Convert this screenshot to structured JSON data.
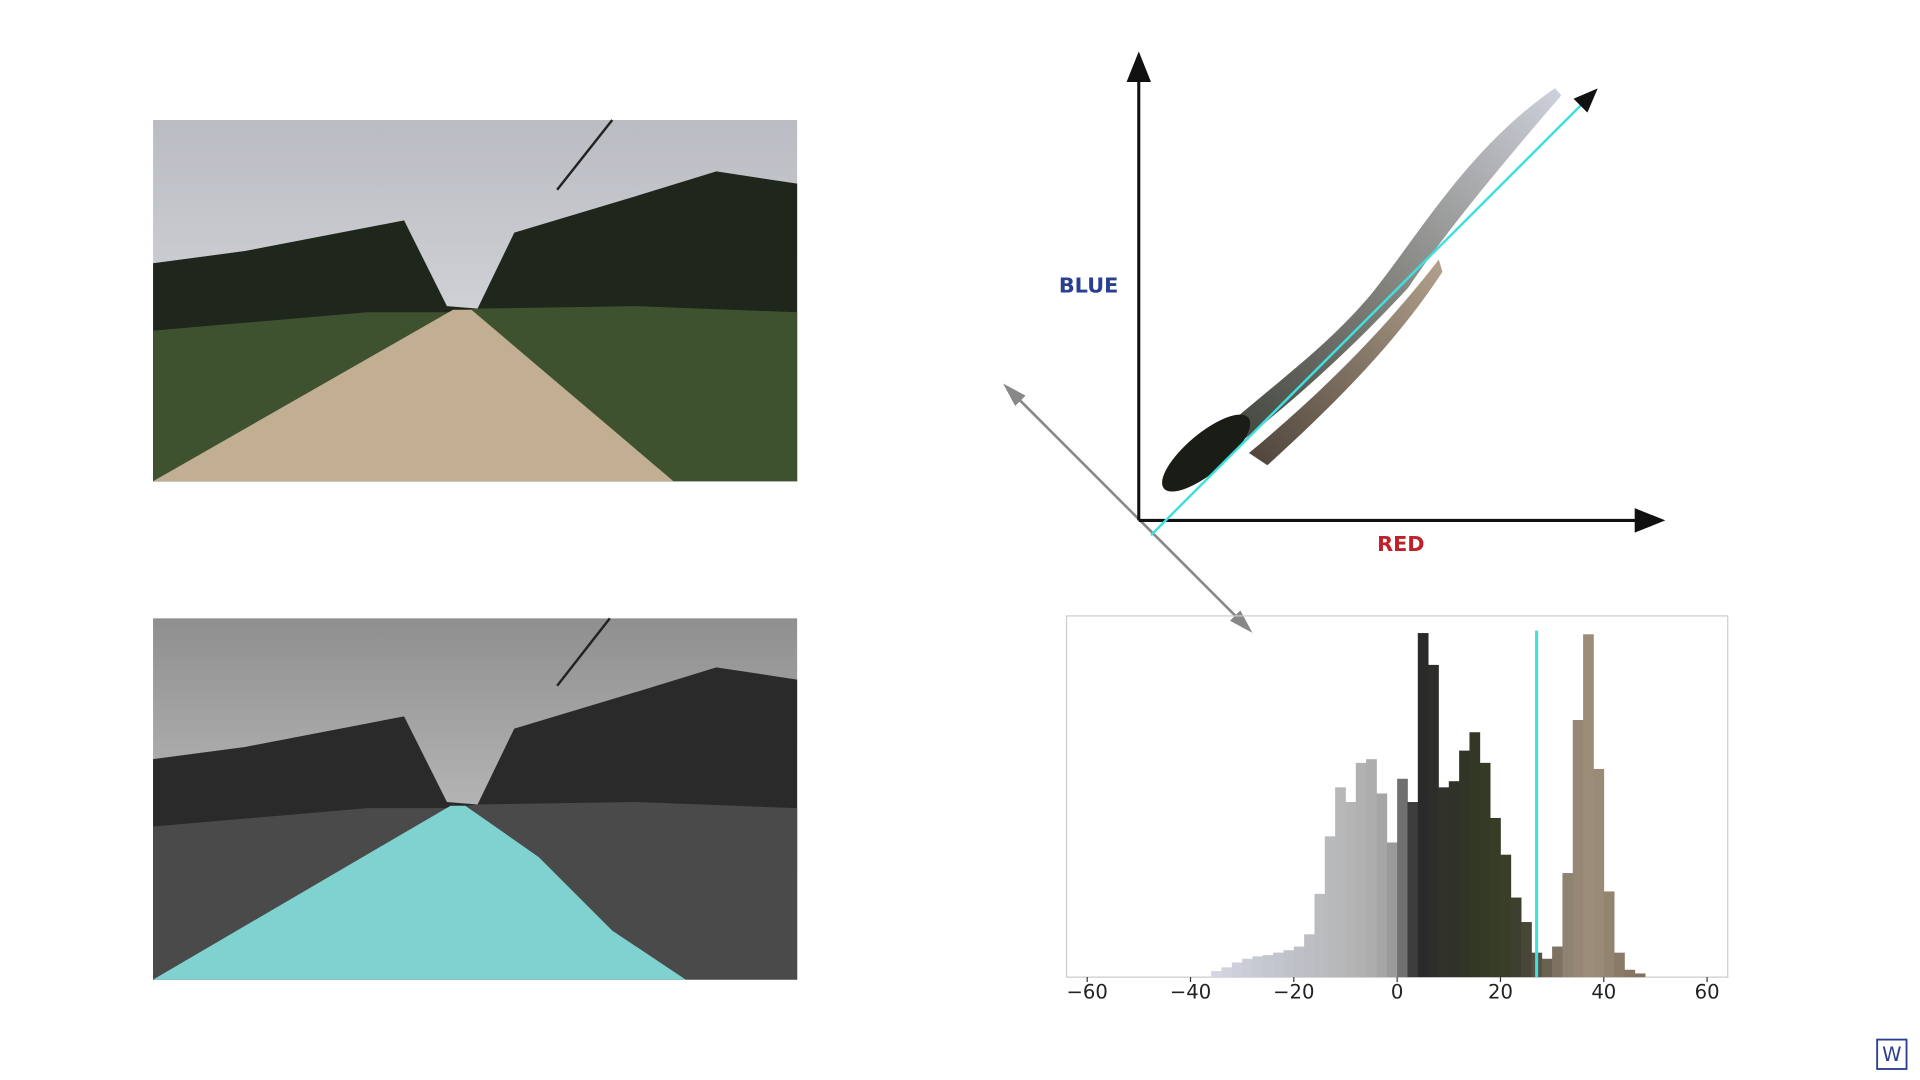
{
  "labels": {
    "blue_axis": "BLUE",
    "red_axis": "RED",
    "logo": "W"
  },
  "chart_data": {
    "type": "histogram",
    "bins": [
      -36,
      -34,
      -32,
      -30,
      -28,
      -26,
      -24,
      -22,
      -20,
      -18,
      -16,
      -14,
      -12,
      -10,
      -8,
      -6,
      -4,
      -2,
      0,
      2,
      4,
      6,
      8,
      10,
      12,
      14,
      16,
      18,
      20,
      22,
      24,
      26,
      28,
      30,
      32,
      34,
      36,
      38,
      40,
      42,
      44,
      46,
      48
    ],
    "counts": [
      5,
      8,
      12,
      15,
      17,
      18,
      20,
      22,
      25,
      35,
      68,
      115,
      155,
      143,
      175,
      178,
      150,
      110,
      162,
      143,
      281,
      255,
      155,
      160,
      185,
      200,
      175,
      130,
      100,
      65,
      45,
      20,
      15,
      25,
      85,
      210,
      280,
      170,
      70,
      20,
      6,
      3
    ],
    "colors": [
      "#d3d6e0",
      "#d0d3dd",
      "#cdd0da",
      "#cacdd6",
      "#c7cad3",
      "#c4c7d0",
      "#c2c5cd",
      "#c0c2ca",
      "#bec0c7",
      "#bcbec4",
      "#bbbcc0",
      "#b9babd",
      "#b7b8ba",
      "#b4b4b5",
      "#b1b1b1",
      "#adadad",
      "#a6a6a6",
      "#9a9a9a",
      "#707070",
      "#3c3c3c",
      "#2a2a2a",
      "#2d2e2b",
      "#30322b",
      "#2f3229",
      "#313527",
      "#333826",
      "#343a25",
      "#363c26",
      "#393e29",
      "#3d402e",
      "#474637",
      "#555044",
      "#6a6153",
      "#7d7262",
      "#8e8270",
      "#968874",
      "#9b8d78",
      "#9a8b77",
      "#938470",
      "#8a7b68",
      "#857662",
      "#807260"
    ],
    "xlim": [
      -64,
      64
    ],
    "ylim": [
      0,
      295
    ],
    "xticks": [
      {
        "value": -60,
        "label": "−60"
      },
      {
        "value": -40,
        "label": "−40"
      },
      {
        "value": -20,
        "label": "−20"
      },
      0,
      20,
      40,
      60
    ],
    "threshold": 27,
    "threshold_color": "#3ee0e0"
  }
}
